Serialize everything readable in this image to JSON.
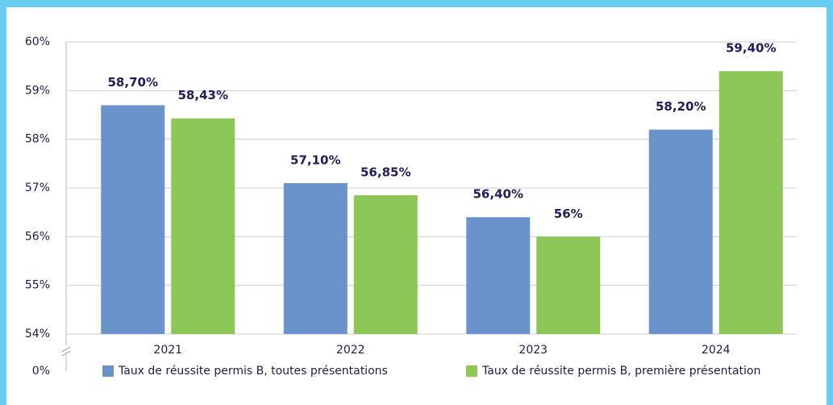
{
  "chart_data": {
    "type": "bar",
    "categories": [
      "2021",
      "2022",
      "2023",
      "2024"
    ],
    "series": [
      {
        "name": "Taux de réussite permis B, toutes présentations",
        "color": "#6a93cc",
        "values": [
          58.7,
          57.1,
          56.4,
          58.2
        ],
        "value_labels": [
          "58,70%",
          "57,10%",
          "56,40%",
          "58,20%"
        ]
      },
      {
        "name": "Taux de réussite permis B, première présentation",
        "color": "#8cc758",
        "values": [
          58.43,
          56.85,
          56,
          59.4
        ],
        "value_labels": [
          "58,43%",
          "56,85%",
          "56%",
          "59,40%"
        ]
      }
    ],
    "ylim": [
      54,
      60
    ],
    "yticks": [
      {
        "value": 0,
        "label": "0%"
      },
      {
        "value": 54,
        "label": "54%"
      },
      {
        "value": 55,
        "label": "55%"
      },
      {
        "value": 56,
        "label": "56%"
      },
      {
        "value": 57,
        "label": "57%"
      },
      {
        "value": 58,
        "label": "58%"
      },
      {
        "value": 59,
        "label": "59%"
      },
      {
        "value": 60,
        "label": "60%"
      }
    ],
    "axis_break": true,
    "grid": true,
    "legend": "bottom"
  }
}
